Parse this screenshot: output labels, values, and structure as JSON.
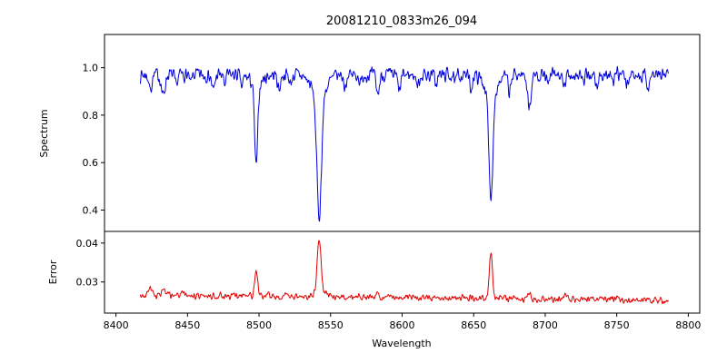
{
  "title": "20081210_0833m26_094",
  "xlabel": "Wavelength",
  "background_color": "#ffffff",
  "axis_color": "#000000",
  "xticks": [
    {
      "value": 8400,
      "label": "8400"
    },
    {
      "value": 8450,
      "label": "8450"
    },
    {
      "value": 8500,
      "label": "8500"
    },
    {
      "value": 8550,
      "label": "8550"
    },
    {
      "value": 8600,
      "label": "8600"
    },
    {
      "value": 8650,
      "label": "8650"
    },
    {
      "value": 8700,
      "label": "8700"
    },
    {
      "value": 8750,
      "label": "8750"
    },
    {
      "value": 8800,
      "label": "8800"
    }
  ],
  "chart_data": [
    {
      "type": "line",
      "name": "spectrum",
      "ylabel": "Spectrum",
      "color": "#0000dd",
      "xlim": [
        8392,
        8808
      ],
      "ylim": [
        0.31,
        1.14
      ],
      "yticks": [
        {
          "value": 0.4,
          "label": "0.4"
        },
        {
          "value": 0.6,
          "label": "0.6"
        },
        {
          "value": 0.8,
          "label": "0.8"
        },
        {
          "value": 1.0,
          "label": "1.0"
        }
      ],
      "x_range": [
        8417,
        8786
      ],
      "n_points": 1100,
      "seed": 7,
      "baseline": 0.97,
      "slope": 0,
      "noise": 0.04,
      "grid": false,
      "legend": false,
      "features": [
        {
          "center": 8498.0,
          "amplitude": -0.35,
          "sigma": 1.1
        },
        {
          "center": 8498.0,
          "amplitude": -0.04,
          "sigma": 4.0
        },
        {
          "center": 8542.0,
          "amplitude": -0.51,
          "sigma": 1.6
        },
        {
          "center": 8542.0,
          "amplitude": -0.09,
          "sigma": 5.0
        },
        {
          "center": 8662.0,
          "amplitude": -0.45,
          "sigma": 1.4
        },
        {
          "center": 8662.0,
          "amplitude": -0.07,
          "sigma": 4.5
        },
        {
          "center": 8424,
          "amplitude": -0.06,
          "sigma": 1.0
        },
        {
          "center": 8433,
          "amplitude": -0.09,
          "sigma": 1.2
        },
        {
          "center": 8442,
          "amplitude": -0.05,
          "sigma": 0.9
        },
        {
          "center": 8452,
          "amplitude": -0.04,
          "sigma": 0.8
        },
        {
          "center": 8468,
          "amplitude": -0.07,
          "sigma": 1.0
        },
        {
          "center": 8476,
          "amplitude": -0.04,
          "sigma": 0.8
        },
        {
          "center": 8488,
          "amplitude": -0.05,
          "sigma": 0.9
        },
        {
          "center": 8514,
          "amplitude": -0.06,
          "sigma": 1.0
        },
        {
          "center": 8522,
          "amplitude": -0.04,
          "sigma": 0.8
        },
        {
          "center": 8560,
          "amplitude": -0.05,
          "sigma": 0.9
        },
        {
          "center": 8571,
          "amplitude": -0.04,
          "sigma": 0.8
        },
        {
          "center": 8583,
          "amplitude": -0.08,
          "sigma": 1.1
        },
        {
          "center": 8598,
          "amplitude": -0.07,
          "sigma": 1.0
        },
        {
          "center": 8611,
          "amplitude": -0.05,
          "sigma": 0.9
        },
        {
          "center": 8624,
          "amplitude": -0.04,
          "sigma": 0.8
        },
        {
          "center": 8637,
          "amplitude": -0.04,
          "sigma": 0.8
        },
        {
          "center": 8648,
          "amplitude": -0.06,
          "sigma": 0.9
        },
        {
          "center": 8675,
          "amplitude": -0.08,
          "sigma": 1.0
        },
        {
          "center": 8689,
          "amplitude": -0.14,
          "sigma": 1.2
        },
        {
          "center": 8702,
          "amplitude": -0.05,
          "sigma": 0.9
        },
        {
          "center": 8713,
          "amplitude": -0.06,
          "sigma": 1.0
        },
        {
          "center": 8727,
          "amplitude": -0.04,
          "sigma": 0.8
        },
        {
          "center": 8736,
          "amplitude": -0.06,
          "sigma": 0.9
        },
        {
          "center": 8747,
          "amplitude": -0.04,
          "sigma": 0.8
        },
        {
          "center": 8757,
          "amplitude": -0.05,
          "sigma": 0.9
        },
        {
          "center": 8772,
          "amplitude": -0.05,
          "sigma": 0.9
        }
      ]
    },
    {
      "type": "line",
      "name": "error",
      "ylabel": "Error",
      "color": "#e00000",
      "xlim": [
        8392,
        8808
      ],
      "ylim": [
        0.022,
        0.043
      ],
      "yticks": [
        {
          "value": 0.03,
          "label": "0.03"
        },
        {
          "value": 0.04,
          "label": "0.04"
        }
      ],
      "x_range": [
        8417,
        8786
      ],
      "n_points": 1100,
      "seed": 3,
      "baseline": 0.026,
      "slope": -3.5e-06,
      "noise": 0.0012,
      "grid": false,
      "legend": false,
      "features": [
        {
          "center": 8498.0,
          "amplitude": 0.0065,
          "sigma": 1.0
        },
        {
          "center": 8542.0,
          "amplitude": 0.014,
          "sigma": 1.3
        },
        {
          "center": 8542.0,
          "amplitude": 0.0015,
          "sigma": 4.0
        },
        {
          "center": 8662.0,
          "amplitude": 0.0115,
          "sigma": 1.1
        },
        {
          "center": 8424,
          "amplitude": 0.0018,
          "sigma": 1.2
        },
        {
          "center": 8433,
          "amplitude": 0.0015,
          "sigma": 1.0
        },
        {
          "center": 8583,
          "amplitude": 0.0012,
          "sigma": 1.0
        },
        {
          "center": 8689,
          "amplitude": 0.002,
          "sigma": 1.1
        },
        {
          "center": 8713,
          "amplitude": 0.001,
          "sigma": 0.9
        }
      ]
    }
  ]
}
